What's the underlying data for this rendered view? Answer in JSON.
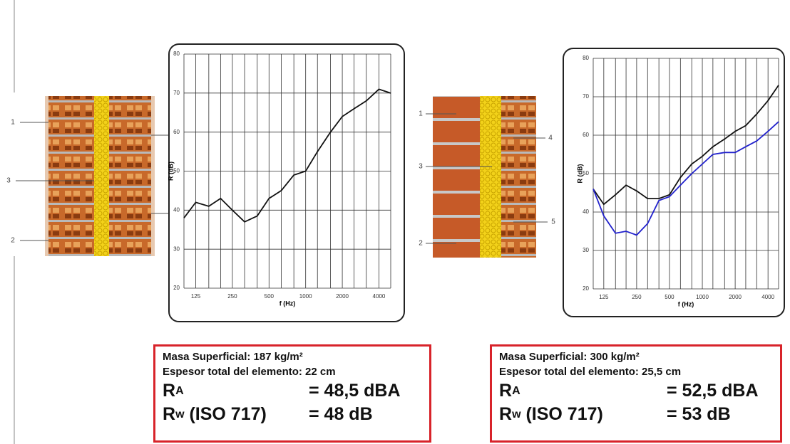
{
  "chart_data": [
    {
      "type": "line",
      "xlabel": "f (Hz)",
      "ylabel": "R (dB)",
      "xscale": "log",
      "grid": true,
      "x": [
        100,
        125,
        160,
        200,
        250,
        315,
        400,
        500,
        630,
        800,
        1000,
        1250,
        1600,
        2000,
        2500,
        3150,
        4000,
        5000
      ],
      "xlim": [
        100,
        5000
      ],
      "xticks": [
        125,
        250,
        500,
        1000,
        2000,
        4000
      ],
      "ylim": [
        20,
        80
      ],
      "yticks": [
        20,
        30,
        40,
        50,
        60,
        70,
        80
      ],
      "series": [
        {
          "color": "#111111",
          "values": [
            38,
            42,
            41,
            43,
            40,
            37,
            38.5,
            43,
            45,
            49,
            50,
            55,
            60,
            64,
            66,
            68,
            71,
            70
          ]
        }
      ]
    },
    {
      "type": "line",
      "xlabel": "f (Hz)",
      "ylabel": "R (dB)",
      "xscale": "log",
      "grid": true,
      "x": [
        100,
        125,
        160,
        200,
        250,
        315,
        400,
        500,
        630,
        800,
        1000,
        1250,
        1600,
        2000,
        2500,
        3150,
        4000,
        5000
      ],
      "xlim": [
        100,
        5000
      ],
      "xticks": [
        125,
        250,
        500,
        1000,
        2000,
        4000
      ],
      "ylim": [
        20,
        80
      ],
      "yticks": [
        20,
        30,
        40,
        50,
        60,
        70,
        80
      ],
      "series": [
        {
          "color": "#111111",
          "values": [
            46,
            42,
            44.5,
            47,
            45.5,
            43.5,
            43.5,
            44.5,
            49,
            52.5,
            54.5,
            57,
            59,
            61,
            62.5,
            65.5,
            69,
            73
          ]
        },
        {
          "color": "#2222cc",
          "values": [
            46,
            39,
            34.5,
            35,
            34,
            37,
            43,
            44,
            47,
            50,
            52.5,
            55,
            55.5,
            55.5,
            57,
            58.5,
            61,
            63.5
          ]
        }
      ]
    }
  ],
  "walls": [
    {
      "labels": [
        "1",
        "3",
        "2"
      ]
    },
    {
      "labels": [
        "1",
        "3",
        "2",
        "4",
        "5"
      ]
    }
  ],
  "boxes": [
    {
      "mass": "Masa Superficial: 187 kg/m²",
      "thickness": "Espesor total del elemento: 22 cm",
      "ra_symbol": "R",
      "ra_sub": "A",
      "ra_value": "= 48,5 dBA",
      "rw_symbol": "R",
      "rw_sub": "w",
      "rw_norm": "(ISO 717)",
      "rw_value": "= 48 dB"
    },
    {
      "mass": "Masa Superficial: 300 kg/m²",
      "thickness": "Espesor total del elemento: 25,5 cm",
      "ra_symbol": "R",
      "ra_sub": "A",
      "ra_value": "= 52,5  dBA",
      "rw_symbol": "R",
      "rw_sub": "w",
      "rw_norm": "(ISO 717)",
      "rw_value": "= 53 dB"
    }
  ]
}
